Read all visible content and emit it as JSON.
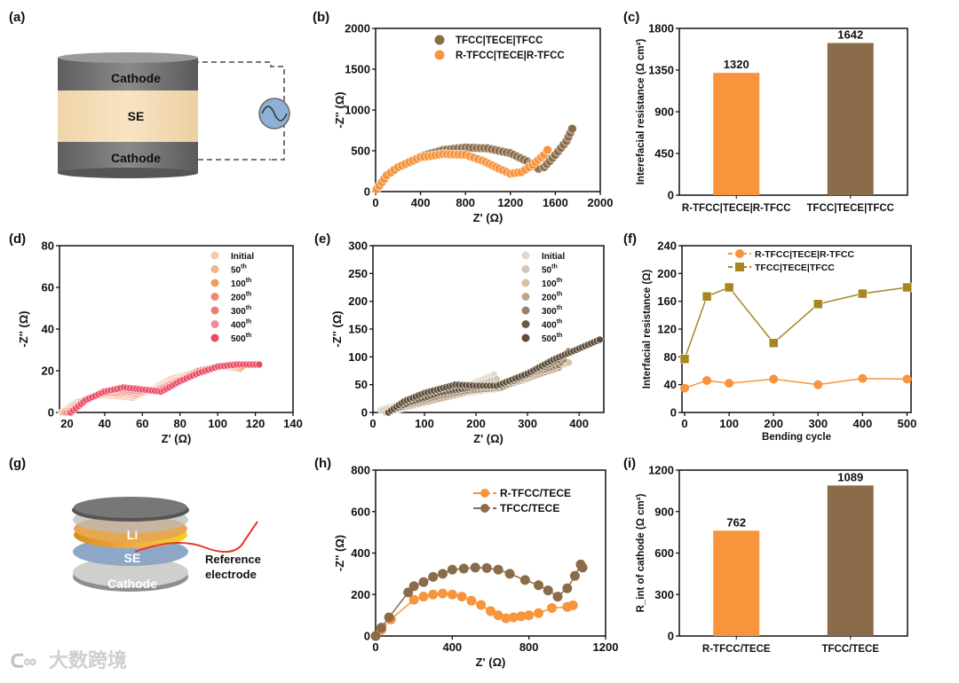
{
  "panel_labels": [
    "(a)",
    "(b)",
    "(c)",
    "(d)",
    "(e)",
    "(f)",
    "(g)",
    "(h)",
    "(i)"
  ],
  "schematic_a": {
    "layers": [
      "Cathode",
      "SE",
      "Cathode"
    ]
  },
  "schematic_g": {
    "layers": [
      "Li",
      "SE",
      "Cathode"
    ],
    "reference_label_1": "Reference",
    "reference_label_2": "electrode"
  },
  "watermark": "大数跨境",
  "colors": {
    "orange": "#f7943c",
    "brown": "#8b6c4a",
    "gold": "#a8861f",
    "pink": "#ec4a63"
  },
  "chart_data": [
    {
      "id": "b",
      "type": "scatter",
      "xlabel": "Z' (Ω)",
      "ylabel": "-Z'' (Ω)",
      "xlim": [
        0,
        2000
      ],
      "ylim": [
        0,
        2000
      ],
      "xticks": [
        0,
        400,
        800,
        1200,
        1600,
        2000
      ],
      "yticks": [
        0,
        500,
        1000,
        1500,
        2000
      ],
      "legend": "top-right",
      "series": [
        {
          "name": "TFCC|TECE|TFCC",
          "color": "#8b6c4a",
          "x": [
            20,
            100,
            200,
            400,
            600,
            800,
            1000,
            1200,
            1350,
            1450,
            1500,
            1600,
            1700,
            1750
          ],
          "y": [
            50,
            200,
            300,
            430,
            510,
            540,
            530,
            470,
            370,
            280,
            300,
            450,
            620,
            770
          ]
        },
        {
          "name": "R-TFCC|TECE|R-TFCC",
          "color": "#f7943c",
          "x": [
            10,
            100,
            200,
            400,
            600,
            800,
            950,
            1100,
            1200,
            1300,
            1400,
            1500,
            1530
          ],
          "y": [
            30,
            200,
            300,
            420,
            460,
            450,
            380,
            280,
            220,
            240,
            330,
            450,
            510
          ]
        }
      ]
    },
    {
      "id": "c",
      "type": "bar",
      "ylabel": "Interefacial resistance (Ω cm²)",
      "ylim": [
        0,
        1800
      ],
      "yticks": [
        0,
        450,
        900,
        1350,
        1800
      ],
      "categories": [
        "R-TFCC|TECE|R-TFCC",
        "TFCC|TECE|TFCC"
      ],
      "values": [
        1320,
        1642
      ],
      "value_labels": [
        "1320",
        "1642"
      ],
      "colors": [
        "#f7943c",
        "#8b6c4a"
      ]
    },
    {
      "id": "d",
      "type": "scatter",
      "xlabel": "Z' (Ω)",
      "ylabel": "-Z'' (Ω)",
      "xlim": [
        16,
        140
      ],
      "ylim": [
        0,
        80
      ],
      "xticks": [
        20,
        40,
        60,
        80,
        100,
        120,
        140
      ],
      "yticks": [
        0,
        20,
        40,
        60,
        80
      ],
      "legend": "top-right",
      "series": [
        {
          "name": "Initial",
          "sup": "",
          "color": "#f6c9b0",
          "x": [
            17,
            25,
            35,
            45,
            55,
            65,
            75,
            90,
            100,
            110,
            112
          ],
          "y": [
            0,
            5,
            8,
            8,
            7,
            11,
            16,
            20,
            22,
            21,
            21
          ]
        },
        {
          "name": "50",
          "sup": "th",
          "color": "#f4b48a",
          "x": [
            18,
            26,
            36,
            46,
            56,
            66,
            76,
            90,
            100,
            108,
            112
          ],
          "y": [
            0,
            5,
            8,
            9,
            8,
            11,
            15,
            20,
            22,
            22,
            21
          ]
        },
        {
          "name": "100",
          "sup": "th",
          "color": "#f39a5a",
          "x": [
            19,
            27,
            37,
            47,
            57,
            67,
            77,
            90,
            100,
            108,
            113
          ],
          "y": [
            0,
            5,
            9,
            9,
            9,
            11,
            15,
            20,
            22,
            23,
            22
          ]
        },
        {
          "name": "200",
          "sup": "th",
          "color": "#ef8a72",
          "x": [
            19,
            27,
            37,
            47,
            57,
            67,
            77,
            90,
            100,
            110,
            115
          ],
          "y": [
            0,
            5,
            9,
            10,
            9,
            11,
            15,
            20,
            22,
            23,
            23
          ]
        },
        {
          "name": "300",
          "sup": "th",
          "color": "#ee7d72",
          "x": [
            20,
            28,
            38,
            48,
            58,
            68,
            78,
            90,
            100,
            110,
            117
          ],
          "y": [
            0,
            5,
            9,
            10,
            10,
            11,
            15,
            20,
            22,
            23,
            23
          ]
        },
        {
          "name": "400",
          "sup": "th",
          "color": "#f08a9a",
          "x": [
            21,
            29,
            39,
            49,
            59,
            69,
            79,
            90,
            100,
            110,
            119
          ],
          "y": [
            0,
            5,
            10,
            11,
            10,
            11,
            15,
            19,
            22,
            23,
            23
          ]
        },
        {
          "name": "500",
          "sup": "th",
          "color": "#ec4a63",
          "x": [
            22,
            30,
            40,
            50,
            60,
            70,
            80,
            90,
            100,
            110,
            122
          ],
          "y": [
            0,
            6,
            10,
            12,
            11,
            10,
            15,
            19,
            22,
            23,
            23
          ]
        }
      ]
    },
    {
      "id": "e",
      "type": "scatter",
      "xlabel": "Z' (Ω)",
      "ylabel": "-Z'' (Ω)",
      "xlim": [
        0,
        448
      ],
      "ylim": [
        0,
        300
      ],
      "xticks": [
        0,
        100,
        200,
        300,
        400
      ],
      "yticks": [
        0,
        50,
        100,
        150,
        200,
        250,
        300
      ],
      "legend": "top-right",
      "series": [
        {
          "name": "Initial",
          "sup": "",
          "color": "#e3d8cc",
          "x": [
            15,
            50,
            100,
            150,
            200,
            235
          ],
          "y": [
            5,
            15,
            25,
            35,
            55,
            68
          ]
        },
        {
          "name": "50",
          "sup": "th",
          "color": "#d5c5b3",
          "x": [
            20,
            60,
            110,
            160,
            200,
            240
          ],
          "y": [
            3,
            14,
            26,
            36,
            50,
            60
          ]
        },
        {
          "name": "100",
          "sup": "th",
          "color": "#d9c0a2",
          "x": [
            25,
            70,
            120,
            180,
            240,
            300,
            350,
            380
          ],
          "y": [
            0,
            10,
            22,
            35,
            42,
            60,
            80,
            90
          ]
        },
        {
          "name": "200",
          "sup": "th",
          "color": "#c2a584",
          "x": [
            30,
            70,
            130,
            190,
            250,
            310,
            360
          ],
          "y": [
            0,
            12,
            25,
            38,
            45,
            65,
            80
          ]
        },
        {
          "name": "300",
          "sup": "th",
          "color": "#9a8266",
          "x": [
            30,
            70,
            130,
            190,
            250,
            310,
            360,
            370
          ],
          "y": [
            0,
            15,
            30,
            40,
            45,
            70,
            85,
            95
          ]
        },
        {
          "name": "400",
          "sup": "th",
          "color": "#6e5a42",
          "x": [
            30,
            70,
            130,
            190,
            250,
            310,
            360,
            380
          ],
          "y": [
            0,
            18,
            35,
            45,
            48,
            72,
            95,
            110
          ]
        },
        {
          "name": "500",
          "sup": "th",
          "color": "#5e4c38",
          "x": [
            30,
            60,
            100,
            160,
            200,
            240,
            300,
            350,
            400,
            440
          ],
          "y": [
            0,
            20,
            35,
            50,
            48,
            48,
            70,
            95,
            115,
            131
          ]
        }
      ]
    },
    {
      "id": "f",
      "type": "line",
      "xlabel": "Bending cycle",
      "ylabel": "Interfacial resistance (Ω)",
      "xlim": [
        -6,
        509
      ],
      "ylim": [
        0,
        240
      ],
      "xticks": [
        0,
        100,
        200,
        300,
        400,
        500
      ],
      "yticks": [
        0,
        40,
        80,
        120,
        160,
        200,
        240
      ],
      "legend": "top-right",
      "series": [
        {
          "name": "R-TFCC|TECE|R-TFCC",
          "marker": "circle",
          "color": "#f7943c",
          "x": [
            0,
            50,
            100,
            200,
            300,
            400,
            500
          ],
          "y": [
            35,
            46,
            42,
            48,
            40,
            49,
            48
          ]
        },
        {
          "name": "TFCC|TECE|TFCC",
          "marker": "square",
          "color": "#a8861f",
          "x": [
            0,
            50,
            100,
            200,
            300,
            400,
            500
          ],
          "y": [
            77,
            167,
            180,
            100,
            156,
            171,
            180
          ]
        }
      ]
    },
    {
      "id": "h",
      "type": "line",
      "xlabel": "Z' (Ω)",
      "ylabel": "-Z'' (Ω)",
      "xlim": [
        0,
        1200
      ],
      "ylim": [
        0,
        800
      ],
      "xticks": [
        0,
        400,
        800,
        1200
      ],
      "yticks": [
        0,
        200,
        400,
        600,
        800
      ],
      "legend": "top-right",
      "series": [
        {
          "name": "R-TFCC/TECE",
          "marker": "circle",
          "color": "#f7943c",
          "x": [
            0,
            30,
            80,
            200,
            250,
            300,
            350,
            400,
            450,
            500,
            550,
            600,
            640,
            680,
            720,
            760,
            800,
            850,
            920,
            1000,
            1030
          ],
          "y": [
            0,
            30,
            80,
            175,
            190,
            200,
            205,
            200,
            190,
            170,
            150,
            120,
            100,
            85,
            90,
            95,
            100,
            110,
            135,
            140,
            148
          ]
        },
        {
          "name": "TFCC/TECE",
          "marker": "circle",
          "color": "#8b6c4a",
          "x": [
            0,
            30,
            70,
            170,
            200,
            250,
            300,
            350,
            400,
            460,
            520,
            580,
            640,
            700,
            780,
            850,
            900,
            950,
            1000,
            1040,
            1070,
            1080
          ],
          "y": [
            0,
            40,
            90,
            210,
            240,
            260,
            285,
            300,
            320,
            325,
            330,
            328,
            320,
            300,
            270,
            245,
            220,
            190,
            230,
            290,
            345,
            330
          ]
        }
      ]
    },
    {
      "id": "i",
      "type": "bar",
      "ylabel": "R_int of cathode (Ω cm²)",
      "ylim": [
        0,
        1200
      ],
      "yticks": [
        0,
        300,
        600,
        900,
        1200
      ],
      "categories": [
        "R-TFCC/TECE",
        "TFCC/TECE"
      ],
      "values": [
        762,
        1089
      ],
      "value_labels": [
        "762",
        "1089"
      ],
      "colors": [
        "#f7943c",
        "#8b6c4a"
      ]
    }
  ]
}
